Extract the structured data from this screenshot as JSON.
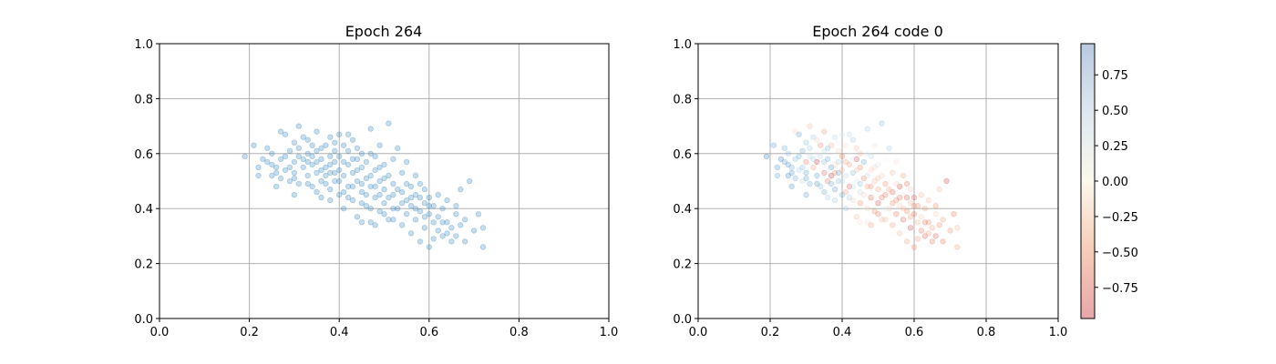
{
  "colors": {
    "scatter": "#1f77b4",
    "grid": "#b0b0b0",
    "axis": "#000000"
  },
  "colormap": "RdBu",
  "chart_data": [
    {
      "type": "scatter",
      "title": "Epoch 264",
      "xlabel": "",
      "ylabel": "",
      "xlim": [
        0,
        1
      ],
      "ylim": [
        0,
        1
      ],
      "grid": true,
      "x_ticks": [
        "0.0",
        "0.2",
        "0.4",
        "0.6",
        "0.8",
        "1.0"
      ],
      "y_ticks": [
        "0.0",
        "0.2",
        "0.4",
        "0.6",
        "0.8",
        "1.0"
      ],
      "alpha": 0.25,
      "points_from": "shared_points"
    },
    {
      "type": "scatter",
      "title": "Epoch 264 code 0",
      "xlabel": "",
      "ylabel": "",
      "xlim": [
        0,
        1
      ],
      "ylim": [
        0,
        1
      ],
      "grid": true,
      "x_ticks": [
        "0.0",
        "0.2",
        "0.4",
        "0.6",
        "0.8",
        "1.0"
      ],
      "y_ticks": [
        "0.0",
        "0.2",
        "0.4",
        "0.6",
        "0.8",
        "1.0"
      ],
      "alpha": 0.25,
      "colorbar": {
        "range": [
          -0.97,
          0.97
        ],
        "ticks": [
          0.75,
          0.5,
          0.25,
          0.0,
          -0.25,
          -0.5,
          -0.75
        ],
        "tick_labels": [
          "0.75",
          "0.50",
          "0.25",
          "0.00",
          "−0.25",
          "−0.50",
          "−0.75"
        ]
      },
      "points_from": "shared_points"
    }
  ],
  "shared_points": [
    [
      0.19,
      0.59,
      0.9
    ],
    [
      0.21,
      0.63,
      0.6
    ],
    [
      0.22,
      0.55,
      0.7
    ],
    [
      0.24,
      0.62,
      0.5
    ],
    [
      0.24,
      0.57,
      0.6
    ],
    [
      0.25,
      0.52,
      0.8
    ],
    [
      0.25,
      0.6,
      0.4
    ],
    [
      0.26,
      0.48,
      0.7
    ],
    [
      0.26,
      0.55,
      0.5
    ],
    [
      0.27,
      0.58,
      0.4
    ],
    [
      0.27,
      0.68,
      -0.2
    ],
    [
      0.28,
      0.67,
      0.6
    ],
    [
      0.28,
      0.54,
      0.3
    ],
    [
      0.29,
      0.5,
      0.2
    ],
    [
      0.29,
      0.61,
      0.5
    ],
    [
      0.3,
      0.57,
      -0.6
    ],
    [
      0.3,
      0.64,
      0.4
    ],
    [
      0.3,
      0.53,
      0.6
    ],
    [
      0.31,
      0.59,
      0.2
    ],
    [
      0.31,
      0.7,
      -0.3
    ],
    [
      0.31,
      0.49,
      0.5
    ],
    [
      0.32,
      0.66,
      0.3
    ],
    [
      0.32,
      0.55,
      -0.4
    ],
    [
      0.33,
      0.6,
      0.1
    ],
    [
      0.33,
      0.52,
      0.6
    ],
    [
      0.33,
      0.57,
      -0.9
    ],
    [
      0.34,
      0.63,
      -0.5
    ],
    [
      0.34,
      0.48,
      0.4
    ],
    [
      0.34,
      0.56,
      0.0
    ],
    [
      0.35,
      0.53,
      -0.7
    ],
    [
      0.35,
      0.61,
      0.2
    ],
    [
      0.35,
      0.68,
      -0.4
    ],
    [
      0.36,
      0.58,
      0.5
    ],
    [
      0.36,
      0.5,
      -0.6
    ],
    [
      0.36,
      0.44,
      0.3
    ],
    [
      0.37,
      0.55,
      0.7
    ],
    [
      0.37,
      0.63,
      -0.3
    ],
    [
      0.37,
      0.52,
      -0.9
    ],
    [
      0.38,
      0.59,
      0.0
    ],
    [
      0.38,
      0.66,
      0.2
    ],
    [
      0.38,
      0.47,
      0.6
    ],
    [
      0.38,
      0.53,
      -0.5
    ],
    [
      0.39,
      0.57,
      0.3
    ],
    [
      0.39,
      0.61,
      -0.2
    ],
    [
      0.39,
      0.5,
      0.4
    ],
    [
      0.4,
      0.67,
      0.1
    ],
    [
      0.4,
      0.54,
      -0.3
    ],
    [
      0.4,
      0.45,
      0.5
    ],
    [
      0.4,
      0.59,
      -0.6
    ],
    [
      0.41,
      0.52,
      0.2
    ],
    [
      0.41,
      0.63,
      -0.1
    ],
    [
      0.41,
      0.4,
      0.3
    ],
    [
      0.42,
      0.56,
      -0.4
    ],
    [
      0.42,
      0.48,
      -0.7
    ],
    [
      0.42,
      0.61,
      0.0
    ],
    [
      0.43,
      0.53,
      0.4
    ],
    [
      0.43,
      0.43,
      -0.2
    ],
    [
      0.43,
      0.65,
      0.3
    ],
    [
      0.44,
      0.58,
      -0.8
    ],
    [
      0.44,
      0.5,
      0.1
    ],
    [
      0.44,
      0.37,
      -0.3
    ],
    [
      0.45,
      0.55,
      -0.5
    ],
    [
      0.45,
      0.46,
      0.2
    ],
    [
      0.45,
      0.6,
      -0.3
    ],
    [
      0.46,
      0.51,
      -0.6
    ],
    [
      0.46,
      0.41,
      0.0
    ],
    [
      0.46,
      0.57,
      0.5
    ],
    [
      0.47,
      0.69,
      0.3
    ],
    [
      0.47,
      0.48,
      -0.4
    ],
    [
      0.47,
      0.35,
      -0.1
    ],
    [
      0.48,
      0.54,
      -0.2
    ],
    [
      0.48,
      0.44,
      -0.7
    ],
    [
      0.48,
      0.59,
      0.2
    ],
    [
      0.49,
      0.5,
      -0.3
    ],
    [
      0.49,
      0.39,
      -0.5
    ],
    [
      0.49,
      0.63,
      -0.1
    ],
    [
      0.5,
      0.47,
      -0.4
    ],
    [
      0.5,
      0.56,
      0.1
    ],
    [
      0.5,
      0.42,
      -0.8
    ],
    [
      0.51,
      0.71,
      0.4
    ],
    [
      0.51,
      0.52,
      -0.2
    ],
    [
      0.51,
      0.36,
      -0.3
    ],
    [
      0.52,
      0.45,
      -0.6
    ],
    [
      0.52,
      0.58,
      0.0
    ],
    [
      0.52,
      0.49,
      -0.5
    ],
    [
      0.53,
      0.4,
      -0.2
    ],
    [
      0.53,
      0.62,
      0.3
    ],
    [
      0.54,
      0.46,
      -0.7
    ],
    [
      0.54,
      0.34,
      -0.4
    ],
    [
      0.54,
      0.53,
      -0.3
    ],
    [
      0.55,
      0.43,
      -0.5
    ],
    [
      0.55,
      0.57,
      -0.1
    ],
    [
      0.55,
      0.38,
      -0.6
    ],
    [
      0.56,
      0.48,
      -0.8
    ],
    [
      0.56,
      0.31,
      -0.3
    ],
    [
      0.56,
      0.41,
      -0.2
    ],
    [
      0.57,
      0.52,
      -0.4
    ],
    [
      0.57,
      0.36,
      -0.7
    ],
    [
      0.57,
      0.45,
      -0.1
    ],
    [
      0.58,
      0.39,
      -0.5
    ],
    [
      0.58,
      0.28,
      -0.4
    ],
    [
      0.58,
      0.49,
      -0.6
    ],
    [
      0.59,
      0.42,
      -0.3
    ],
    [
      0.59,
      0.33,
      -0.8
    ],
    [
      0.59,
      0.47,
      -0.2
    ],
    [
      0.6,
      0.38,
      -0.6
    ],
    [
      0.6,
      0.26,
      -0.5
    ],
    [
      0.6,
      0.44,
      -0.7
    ],
    [
      0.61,
      0.35,
      -0.3
    ],
    [
      0.61,
      0.29,
      -0.4
    ],
    [
      0.61,
      0.41,
      -0.5
    ],
    [
      0.62,
      0.32,
      -0.6
    ],
    [
      0.62,
      0.37,
      -0.2
    ],
    [
      0.63,
      0.4,
      -0.4
    ],
    [
      0.63,
      0.3,
      -0.7
    ],
    [
      0.64,
      0.35,
      -0.5
    ],
    [
      0.64,
      0.43,
      -0.3
    ],
    [
      0.65,
      0.28,
      -0.6
    ],
    [
      0.65,
      0.33,
      -0.4
    ],
    [
      0.66,
      0.38,
      -0.2
    ],
    [
      0.66,
      0.3,
      -0.7
    ],
    [
      0.67,
      0.34,
      -0.5
    ],
    [
      0.67,
      0.47,
      -0.3
    ],
    [
      0.68,
      0.28,
      -0.6
    ],
    [
      0.68,
      0.36,
      -0.4
    ],
    [
      0.69,
      0.5,
      -0.8
    ],
    [
      0.7,
      0.32,
      -0.5
    ],
    [
      0.71,
      0.38,
      -0.6
    ],
    [
      0.72,
      0.26,
      -0.4
    ],
    [
      0.72,
      0.33,
      -0.3
    ],
    [
      0.23,
      0.58,
      0.8
    ],
    [
      0.26,
      0.53,
      0.7
    ],
    [
      0.28,
      0.59,
      0.5
    ],
    [
      0.29,
      0.55,
      0.4
    ],
    [
      0.3,
      0.51,
      0.6
    ],
    [
      0.32,
      0.58,
      0.3
    ],
    [
      0.33,
      0.49,
      0.7
    ],
    [
      0.34,
      0.59,
      0.2
    ],
    [
      0.35,
      0.57,
      0.4
    ],
    [
      0.36,
      0.54,
      0.1
    ],
    [
      0.37,
      0.49,
      0.5
    ],
    [
      0.38,
      0.56,
      -0.2
    ],
    [
      0.39,
      0.53,
      0.6
    ],
    [
      0.4,
      0.5,
      0.2
    ],
    [
      0.41,
      0.57,
      -0.4
    ],
    [
      0.42,
      0.44,
      0.3
    ],
    [
      0.43,
      0.58,
      0.1
    ],
    [
      0.44,
      0.54,
      -0.3
    ],
    [
      0.45,
      0.49,
      0.4
    ],
    [
      0.46,
      0.45,
      -0.2
    ],
    [
      0.47,
      0.52,
      0.2
    ],
    [
      0.48,
      0.48,
      -0.5
    ],
    [
      0.49,
      0.45,
      0.0
    ],
    [
      0.5,
      0.51,
      -0.3
    ],
    [
      0.51,
      0.44,
      -0.6
    ],
    [
      0.52,
      0.4,
      0.1
    ],
    [
      0.53,
      0.47,
      -0.4
    ],
    [
      0.54,
      0.42,
      -0.5
    ],
    [
      0.55,
      0.49,
      -0.2
    ],
    [
      0.56,
      0.44,
      -0.6
    ],
    [
      0.57,
      0.4,
      -0.3
    ],
    [
      0.58,
      0.44,
      -0.7
    ],
    [
      0.59,
      0.37,
      -0.4
    ],
    [
      0.6,
      0.41,
      -0.5
    ],
    [
      0.62,
      0.45,
      -0.3
    ],
    [
      0.63,
      0.35,
      -0.6
    ],
    [
      0.64,
      0.31,
      -0.4
    ],
    [
      0.66,
      0.41,
      -0.5
    ],
    [
      0.31,
      0.62,
      0.3
    ],
    [
      0.33,
      0.65,
      -0.2
    ],
    [
      0.36,
      0.62,
      0.4
    ],
    [
      0.39,
      0.64,
      0.0
    ],
    [
      0.42,
      0.67,
      0.2
    ],
    [
      0.44,
      0.62,
      -0.3
    ],
    [
      0.47,
      0.6,
      0.1
    ],
    [
      0.49,
      0.55,
      -0.2
    ],
    [
      0.35,
      0.46,
      0.5
    ],
    [
      0.38,
      0.43,
      0.3
    ],
    [
      0.41,
      0.46,
      -0.4
    ],
    [
      0.43,
      0.48,
      0.2
    ],
    [
      0.45,
      0.42,
      -0.5
    ],
    [
      0.47,
      0.4,
      -0.2
    ],
    [
      0.5,
      0.38,
      -0.6
    ],
    [
      0.52,
      0.36,
      -0.3
    ],
    [
      0.45,
      0.35,
      -0.1
    ],
    [
      0.48,
      0.34,
      -0.4
    ],
    [
      0.3,
      0.45,
      0.6
    ],
    [
      0.27,
      0.51,
      0.5
    ],
    [
      0.25,
      0.56,
      0.7
    ],
    [
      0.22,
      0.52,
      0.6
    ]
  ]
}
